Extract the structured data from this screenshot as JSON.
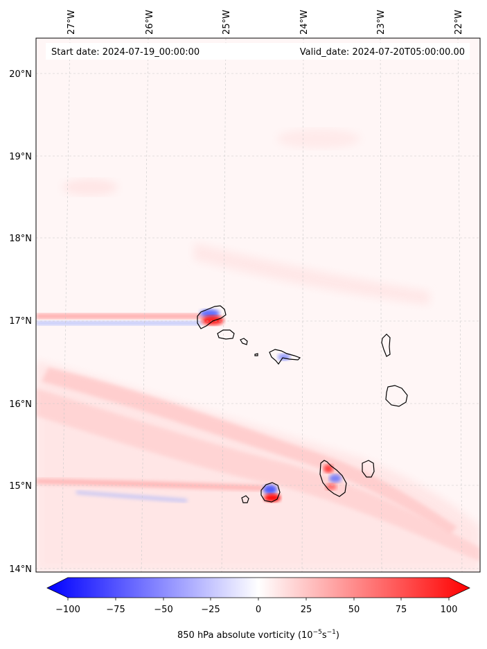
{
  "header": {
    "start_date": "Start date: 2024-07-19_00:00:00",
    "valid_date": "Valid_date: 2024-07-20T05:00:00.00"
  },
  "map": {
    "lon_labels": [
      "27°W",
      "26°W",
      "25°W",
      "24°W",
      "23°W",
      "22°W"
    ],
    "lat_labels": [
      "20°N",
      "19°N",
      "18°N",
      "17°N",
      "16°N",
      "15°N",
      "14°N"
    ],
    "gridlines": true
  },
  "colorbar": {
    "ticks": [
      "−100",
      "−75",
      "−50",
      "−25",
      "0",
      "25",
      "50",
      "75",
      "100"
    ],
    "label_main": "850 hPa absolute vorticity (10",
    "label_exp1": "−5",
    "label_mid": "s",
    "label_exp2": "−1",
    "label_end": ")",
    "colors": {
      "min": "#0000ff",
      "mid": "#ffffff",
      "max": "#ff0000"
    }
  }
}
